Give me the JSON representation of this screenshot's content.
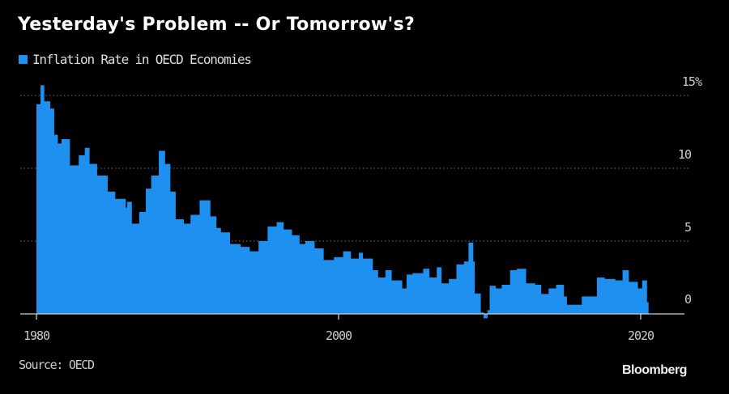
{
  "chart_data": {
    "type": "bar",
    "title": "Yesterday's Problem -- Or Tomorrow's?",
    "legend": [
      "Inflation Rate in OECD Economies"
    ],
    "legend_placement": "top-left",
    "series_color": "#1e90f0",
    "xlabel": "",
    "ylabel": "",
    "x_ticks": [
      "1980",
      "2000",
      "2020"
    ],
    "y_ticks": [
      "15%",
      "10",
      "5",
      "0"
    ],
    "y_tick_values": [
      15,
      10,
      5,
      0
    ],
    "ylim": [
      -0.5,
      16
    ],
    "xlim": [
      1979,
      2022
    ],
    "grid": "horizontal dotted",
    "series": [
      {
        "name": "Inflation Rate in OECD Economies",
        "points": [
          [
            1980.0,
            14.4
          ],
          [
            1980.27,
            15.7
          ],
          [
            1980.5,
            14.6
          ],
          [
            1980.9,
            14.1
          ],
          [
            1981.16,
            12.3
          ],
          [
            1981.4,
            11.7
          ],
          [
            1981.66,
            12.0
          ],
          [
            1982.2,
            10.2
          ],
          [
            1982.8,
            10.9
          ],
          [
            1983.2,
            11.4
          ],
          [
            1983.5,
            10.3
          ],
          [
            1984.0,
            9.5
          ],
          [
            1984.7,
            8.4
          ],
          [
            1985.2,
            7.9
          ],
          [
            1985.9,
            7.3
          ],
          [
            1986.0,
            7.7
          ],
          [
            1986.3,
            6.2
          ],
          [
            1986.8,
            7.0
          ],
          [
            1987.24,
            8.6
          ],
          [
            1987.6,
            9.5
          ],
          [
            1988.1,
            11.2
          ],
          [
            1988.5,
            10.3
          ],
          [
            1988.85,
            8.4
          ],
          [
            1989.2,
            6.5
          ],
          [
            1989.74,
            6.2
          ],
          [
            1990.2,
            6.8
          ],
          [
            1990.8,
            7.8
          ],
          [
            1991.5,
            6.7
          ],
          [
            1991.9,
            5.9
          ],
          [
            1992.2,
            5.6
          ],
          [
            1992.8,
            4.8
          ],
          [
            1993.5,
            4.6
          ],
          [
            1994.1,
            4.3
          ],
          [
            1994.7,
            5.0
          ],
          [
            1995.3,
            6.0
          ],
          [
            1995.9,
            6.3
          ],
          [
            1996.35,
            5.8
          ],
          [
            1996.9,
            5.4
          ],
          [
            1997.4,
            4.8
          ],
          [
            1997.8,
            5.0
          ],
          [
            1998.4,
            4.5
          ],
          [
            1999.0,
            3.7
          ],
          [
            1999.7,
            3.9
          ],
          [
            2000.3,
            4.3
          ],
          [
            2000.8,
            3.8
          ],
          [
            2001.34,
            4.2
          ],
          [
            2001.6,
            3.8
          ],
          [
            2002.25,
            3.0
          ],
          [
            2002.6,
            2.5
          ],
          [
            2003.1,
            3.0
          ],
          [
            2003.5,
            2.3
          ],
          [
            2004.2,
            1.75
          ],
          [
            2004.5,
            2.7
          ],
          [
            2004.9,
            2.8
          ],
          [
            2005.6,
            3.1
          ],
          [
            2006.0,
            2.5
          ],
          [
            2006.5,
            3.2
          ],
          [
            2006.8,
            2.1
          ],
          [
            2007.3,
            2.4
          ],
          [
            2007.8,
            3.4
          ],
          [
            2008.3,
            3.6
          ],
          [
            2008.6,
            4.9
          ],
          [
            2008.9,
            3.6
          ],
          [
            2009.0,
            1.4
          ],
          [
            2009.4,
            0.1
          ],
          [
            2009.6,
            -0.3
          ],
          [
            2009.85,
            0.26
          ],
          [
            2010.0,
            1.93
          ],
          [
            2010.4,
            1.75
          ],
          [
            2010.8,
            2.0
          ],
          [
            2011.35,
            3.0
          ],
          [
            2011.8,
            3.1
          ],
          [
            2012.4,
            2.1
          ],
          [
            2013.0,
            2.0
          ],
          [
            2013.4,
            1.37
          ],
          [
            2013.9,
            1.75
          ],
          [
            2014.4,
            2.0
          ],
          [
            2014.9,
            1.2
          ],
          [
            2015.1,
            0.63
          ],
          [
            2015.8,
            0.63
          ],
          [
            2016.1,
            1.2
          ],
          [
            2016.7,
            1.2
          ],
          [
            2017.1,
            2.5
          ],
          [
            2017.6,
            2.4
          ],
          [
            2018.3,
            2.3
          ],
          [
            2018.8,
            3.0
          ],
          [
            2019.2,
            2.2
          ],
          [
            2019.8,
            1.75
          ],
          [
            2020.1,
            2.3
          ],
          [
            2020.4,
            0.8
          ]
        ]
      }
    ],
    "source": "Source: OECD",
    "brand": "Bloomberg"
  }
}
